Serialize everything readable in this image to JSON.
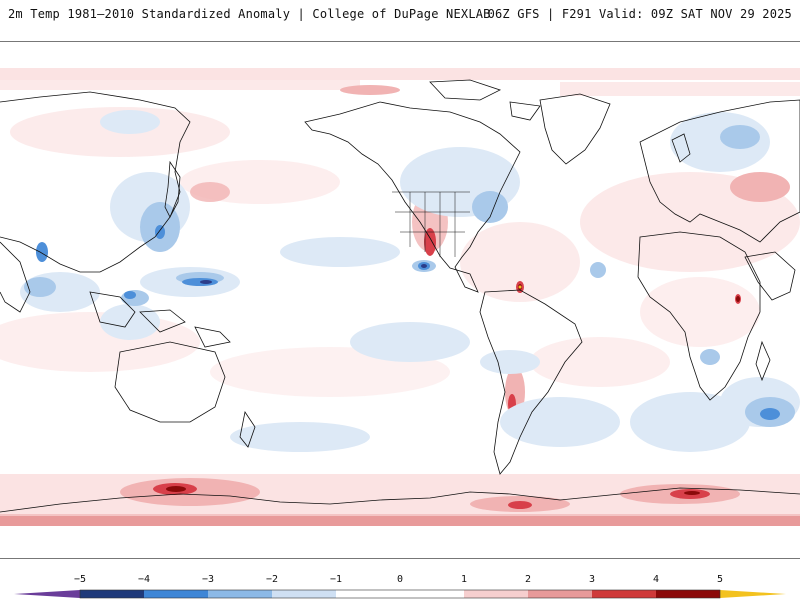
{
  "header": {
    "title_left": "2m Temp 1981–2010 Standardized Anomaly | College of DuPage NEXLAB",
    "title_right": "06Z GFS | F291 Valid: 09Z SAT NOV 29 2025"
  },
  "colorbar": {
    "ticks": [
      "−5",
      "−4",
      "−3",
      "−2",
      "−1",
      "0",
      "1",
      "2",
      "3",
      "4",
      "5"
    ],
    "colors": [
      "#6a3d9a",
      "#1f3a7a",
      "#3e86d6",
      "#8cb9e6",
      "#cfe0f3",
      "#ffffff",
      "#ffffff",
      "#f6cfcf",
      "#e79a9a",
      "#cf3a3a",
      "#8b0a0a",
      "#f3c21f"
    ]
  },
  "colors": {
    "land_outline": "#111111",
    "warm_light": "#fbe3e3",
    "warm_mid": "#f1b3b3",
    "warm_strong": "#d8404a",
    "warm_extreme": "#8b0a0a",
    "cool_light": "#dde9f6",
    "cool_mid": "#a9c9ea",
    "cool_strong": "#4d8fd9",
    "cool_extreme": "#2b3d8a"
  }
}
